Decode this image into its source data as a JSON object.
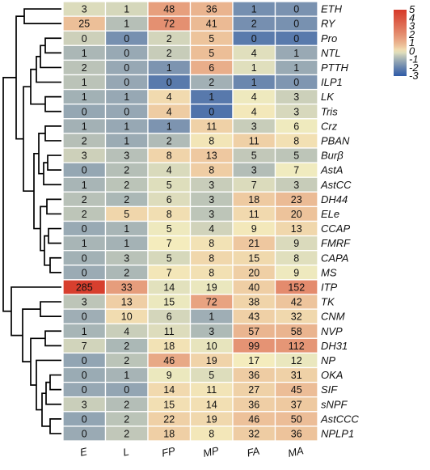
{
  "chart_data": {
    "type": "heatmap",
    "columns": [
      "E",
      "L",
      "FP",
      "MP",
      "FA",
      "MA"
    ],
    "rows": [
      "ETH",
      "RY",
      "Pro",
      "NTL",
      "PTTH",
      "ILP1",
      "LK",
      "Tris",
      "Crz",
      "PBAN",
      "Burβ",
      "AstA",
      "AstCC",
      "DH44",
      "ELe",
      "CCAP",
      "FMRF",
      "CAPA",
      "MS",
      "ITP",
      "TK",
      "CNM",
      "NVP",
      "DH31",
      "NP",
      "OKA",
      "SIF",
      "sNPF",
      "AstCCC",
      "NPLP1"
    ],
    "values": [
      [
        3,
        1,
        48,
        36,
        1,
        0
      ],
      [
        25,
        1,
        72,
        41,
        2,
        0
      ],
      [
        0,
        0,
        2,
        5,
        0,
        0
      ],
      [
        1,
        0,
        2,
        5,
        4,
        1
      ],
      [
        2,
        0,
        1,
        6,
        1,
        1
      ],
      [
        1,
        0,
        0,
        2,
        1,
        0
      ],
      [
        1,
        1,
        4,
        1,
        4,
        3
      ],
      [
        0,
        0,
        4,
        0,
        4,
        3
      ],
      [
        1,
        1,
        1,
        11,
        3,
        6
      ],
      [
        2,
        1,
        2,
        8,
        11,
        8
      ],
      [
        3,
        3,
        8,
        13,
        5,
        5
      ],
      [
        0,
        2,
        4,
        8,
        3,
        7
      ],
      [
        1,
        2,
        5,
        3,
        7,
        3
      ],
      [
        2,
        2,
        6,
        3,
        18,
        23
      ],
      [
        2,
        5,
        8,
        3,
        11,
        20
      ],
      [
        0,
        1,
        5,
        4,
        9,
        13
      ],
      [
        1,
        1,
        7,
        8,
        21,
        9
      ],
      [
        0,
        3,
        5,
        8,
        15,
        8
      ],
      [
        0,
        2,
        7,
        8,
        20,
        9
      ],
      [
        285,
        33,
        14,
        19,
        40,
        152
      ],
      [
        3,
        13,
        15,
        72,
        38,
        42
      ],
      [
        0,
        10,
        6,
        1,
        43,
        32
      ],
      [
        1,
        4,
        11,
        3,
        57,
        58
      ],
      [
        7,
        2,
        18,
        10,
        99,
        112
      ],
      [
        0,
        2,
        46,
        19,
        17,
        12
      ],
      [
        0,
        1,
        9,
        5,
        36,
        31
      ],
      [
        0,
        0,
        14,
        11,
        27,
        45
      ],
      [
        3,
        2,
        15,
        14,
        36,
        37
      ],
      [
        0,
        2,
        22,
        19,
        46,
        50
      ],
      [
        0,
        2,
        18,
        8,
        32,
        36
      ]
    ],
    "z": [
      [
        -0.22,
        -0.3,
        1.55,
        1.0,
        -1.73,
        -1.65
      ],
      [
        0.73,
        -0.71,
        1.98,
        0.85,
        -1.72,
        -1.68
      ],
      [
        -0.4,
        -1.7,
        -0.32,
        0.62,
        -2.2,
        -2.22
      ],
      [
        -0.87,
        -1.16,
        -0.48,
        0.76,
        -0.17,
        -1.15
      ],
      [
        -0.64,
        -1.18,
        -1.6,
        1.14,
        -0.17,
        -1.14
      ],
      [
        -0.64,
        -1.19,
        -2.22,
        -1.01,
        -1.91,
        -1.56
      ],
      [
        -1.0,
        -1.17,
        0.21,
        -2.24,
        -0.04,
        -0.41
      ],
      [
        -1.2,
        -1.19,
        0.46,
        -2.39,
        0.04,
        -0.27
      ],
      [
        -0.99,
        -1.18,
        -1.6,
        0.37,
        -0.46,
        -0.03
      ],
      [
        -0.71,
        -1.11,
        -0.79,
        0.07,
        0.38,
        0.13
      ],
      [
        -0.4,
        -0.69,
        0.31,
        0.54,
        -0.54,
        -0.61
      ],
      [
        -1.2,
        -0.72,
        -0.25,
        0.44,
        -0.75,
        -0.02
      ],
      [
        -0.91,
        -0.63,
        -0.19,
        -0.46,
        -0.23,
        -0.48
      ],
      [
        -0.68,
        -0.86,
        -0.21,
        -0.61,
        0.51,
        0.83
      ],
      [
        -0.61,
        0.28,
        0.16,
        -0.61,
        0.23,
        0.65
      ],
      [
        -1.14,
        -0.91,
        -0.04,
        -0.35,
        0.04,
        0.26
      ],
      [
        -0.91,
        -0.98,
        0.01,
        0.11,
        0.56,
        -0.24
      ],
      [
        -1.0,
        -0.66,
        -0.28,
        0.26,
        0.24,
        -0.17
      ],
      [
        -1.11,
        -0.85,
        0.06,
        0.13,
        0.41,
        -0.04
      ],
      [
        4.8,
        1.6,
        -0.15,
        -0.07,
        0.43,
        2.12
      ],
      [
        -0.61,
        0.42,
        -0.06,
        1.43,
        0.32,
        0.63
      ],
      [
        -1.05,
        0.18,
        -0.31,
        -1.05,
        0.39,
        0.25
      ],
      [
        -0.92,
        -0.45,
        -0.21,
        -0.82,
        0.97,
        0.99
      ],
      [
        -0.34,
        -0.86,
        0.11,
        -0.1,
        1.88,
        1.79
      ],
      [
        -1.25,
        -0.63,
        1.28,
        0.33,
        0.01,
        -0.07
      ],
      [
        -1.12,
        -0.93,
        -0.06,
        -0.2,
        0.47,
        0.36
      ],
      [
        -1.17,
        -1.24,
        0.23,
        0.08,
        0.37,
        0.77
      ],
      [
        -0.45,
        -0.73,
        0.14,
        0.14,
        0.42,
        0.53
      ],
      [
        -1.25,
        -0.63,
        0.38,
        0.25,
        0.68,
        0.77
      ],
      [
        -1.13,
        -0.56,
        0.41,
        0.05,
        0.46,
        0.65
      ]
    ],
    "colorbar": {
      "ticks": [
        "5",
        "4",
        "3",
        "2",
        "1",
        "0",
        "-1",
        "-2",
        "-3"
      ],
      "range": [
        -3,
        5
      ],
      "colors": {
        "low": "#2f5aa7",
        "mid": "#f4eebf",
        "high": "#d63a2a"
      }
    },
    "dendrogram": "row clustering tree on left"
  }
}
